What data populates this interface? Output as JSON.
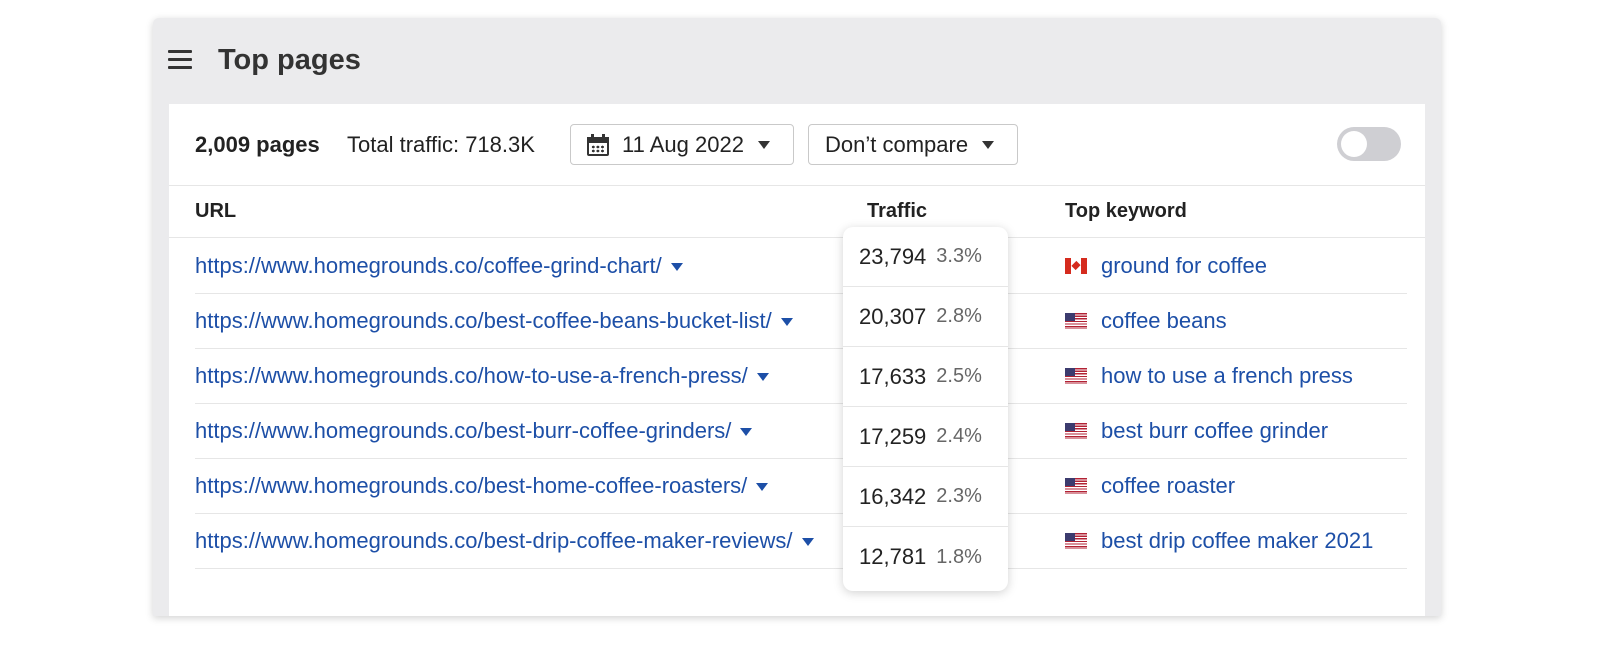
{
  "header": {
    "title": "Top pages"
  },
  "toolbar": {
    "pages_count": "2,009 pages",
    "total_traffic": "Total traffic: 718.3K",
    "date": "11 Aug 2022",
    "compare": "Don’t compare",
    "toggle_on": false
  },
  "table": {
    "columns": {
      "url": "URL",
      "traffic": "Traffic",
      "keyword": "Top keyword"
    },
    "rows": [
      {
        "url": "https://www.homegrounds.co/coffee-grind-chart/",
        "traffic": "23,794",
        "share": "3.3%",
        "keyword": "ground for coffee",
        "flag": "canada-flag-icon"
      },
      {
        "url": "https://www.homegrounds.co/best-coffee-beans-bucket-list/",
        "traffic": "20,307",
        "share": "2.8%",
        "keyword": "coffee beans",
        "flag": "us-flag-icon"
      },
      {
        "url": "https://www.homegrounds.co/how-to-use-a-french-press/",
        "traffic": "17,633",
        "share": "2.5%",
        "keyword": "how to use a french press",
        "flag": "us-flag-icon"
      },
      {
        "url": "https://www.homegrounds.co/best-burr-coffee-grinders/",
        "traffic": "17,259",
        "share": "2.4%",
        "keyword": "best burr coffee grinder",
        "flag": "us-flag-icon"
      },
      {
        "url": "https://www.homegrounds.co/best-home-coffee-roasters/",
        "traffic": "16,342",
        "share": "2.3%",
        "keyword": "coffee roaster",
        "flag": "us-flag-icon"
      },
      {
        "url": "https://www.homegrounds.co/best-drip-coffee-maker-reviews/",
        "traffic": "12,781",
        "share": "1.8%",
        "keyword": "best drip coffee maker 2021",
        "flag": "us-flag-icon"
      }
    ]
  },
  "colors": {
    "link": "#1d4fa7",
    "window_bg": "#ebebed",
    "panel_bg": "#ffffff"
  }
}
